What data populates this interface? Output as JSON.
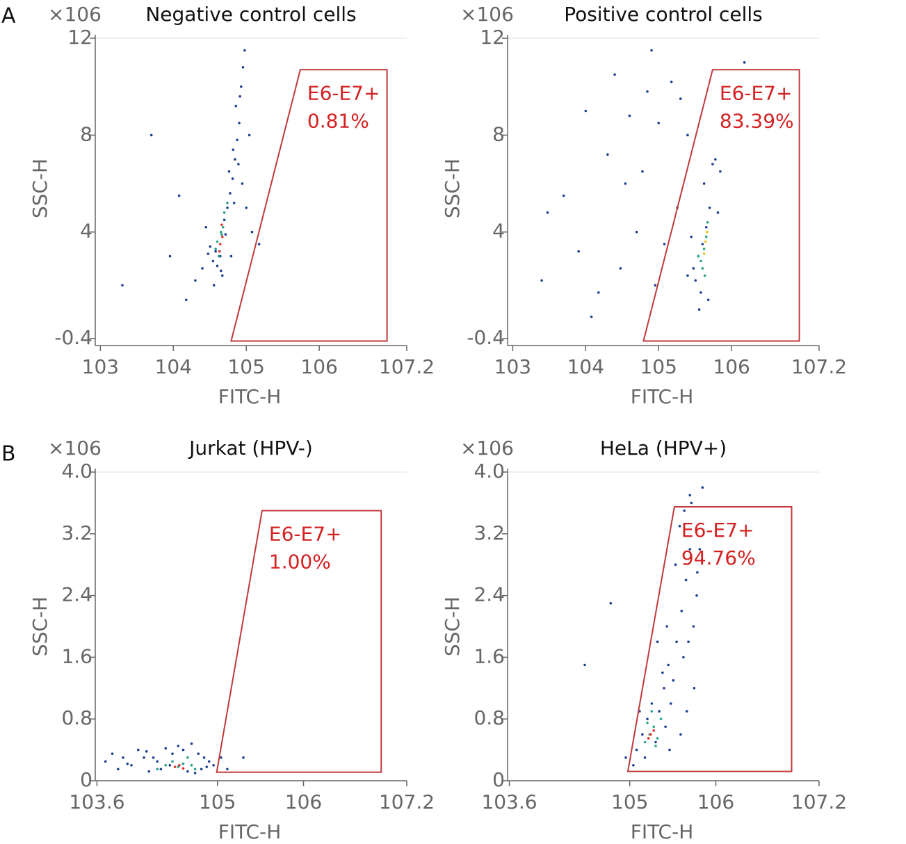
{
  "panels": [
    "A",
    "B"
  ],
  "chart_data": [
    {
      "type": "scatter",
      "title": "Negative control cells",
      "y_unit": "×106",
      "xlabel": "FITC-H",
      "ylabel": "SSC-H",
      "xscale": "log",
      "xlim": [
        850,
        15848932
      ],
      "ylim": [
        -0.4,
        12
      ],
      "xticks": [
        {
          "value": 1000,
          "label": "103"
        },
        {
          "value": 10000,
          "label": "104"
        },
        {
          "value": 100000,
          "label": "105"
        },
        {
          "value": 1000000,
          "label": "106"
        },
        {
          "value": 15848932,
          "label": "107.2"
        }
      ],
      "yticks": [
        -0.4,
        4,
        8,
        12
      ],
      "gate": {
        "color": "#c0393b",
        "x": [
          550000,
          8500000,
          8500000,
          62000
        ],
        "y": [
          10.7,
          10.7,
          -0.5,
          -0.5
        ]
      },
      "annotation": [
        "E6-E7+",
        "0.81%"
      ],
      "points": [
        {
          "color": "#1c3f8f",
          "x": [
            30000,
            40000,
            45000,
            35000,
            50000,
            38000,
            55000,
            60000,
            25000,
            32000,
            44000,
            52000,
            65000,
            70000,
            75000,
            80000,
            72000,
            85000,
            90000,
            95000,
            78000,
            20000,
            28000,
            100000,
            120000,
            15000,
            9000,
            150000,
            110000,
            62000,
            36000,
            47000,
            68000,
            88000,
            5000,
            2000,
            12000,
            82000,
            66000,
            58000
          ],
          "y": [
            3.1,
            2.6,
            2.4,
            2.8,
            4.5,
            3.2,
            5.0,
            5.6,
            2.5,
            3.4,
            3.0,
            3.9,
            6.2,
            7.0,
            7.8,
            8.5,
            9.2,
            10.0,
            10.8,
            11.5,
            6.8,
            2.0,
            4.2,
            5.0,
            4.0,
            1.2,
            3.0,
            3.5,
            8.0,
            3.0,
            1.8,
            2.2,
            5.2,
            6.0,
            8.0,
            1.8,
            5.5,
            9.6,
            7.4,
            6.5
          ]
        },
        {
          "color": "#2aa28a",
          "x": [
            40000,
            45000,
            48000,
            42000,
            50000,
            55000,
            38000,
            46000
          ],
          "y": [
            3.6,
            4.0,
            4.2,
            3.0,
            4.8,
            5.2,
            3.3,
            3.9
          ]
        },
        {
          "color": "#e0302a",
          "x": [
            44000,
            47000,
            43000,
            46000
          ],
          "y": [
            3.5,
            3.8,
            3.2,
            4.3
          ]
        }
      ]
    },
    {
      "type": "scatter",
      "title": "Positive control cells",
      "y_unit": "×106",
      "xlabel": "FITC-H",
      "ylabel": "SSC-H",
      "xscale": "log",
      "xlim": [
        850,
        15848932
      ],
      "ylim": [
        -0.4,
        12
      ],
      "xticks": [
        {
          "value": 1000,
          "label": "103"
        },
        {
          "value": 10000,
          "label": "104"
        },
        {
          "value": 100000,
          "label": "105"
        },
        {
          "value": 1000000,
          "label": "106"
        },
        {
          "value": 15848932,
          "label": "107.2"
        }
      ],
      "yticks": [
        -0.4,
        4,
        8,
        12
      ],
      "gate": {
        "color": "#c0393b",
        "x": [
          550000,
          8500000,
          8500000,
          62000
        ],
        "y": [
          10.7,
          10.7,
          -0.5,
          -0.5
        ]
      },
      "annotation": [
        "E6-E7+",
        "83.39%"
      ],
      "points": [
        {
          "color": "#1c3f8f",
          "x": [
            300000,
            350000,
            400000,
            450000,
            320000,
            500000,
            380000,
            420000,
            280000,
            600000,
            700000,
            250000,
            200000,
            150000,
            80000,
            40000,
            20000,
            10000,
            5000,
            3000,
            60000,
            120000,
            30000,
            15000,
            90000,
            8000,
            180000,
            50000,
            25000,
            250000,
            650000,
            550000,
            480000,
            360000,
            2500,
            100000,
            70000,
            35000,
            12000,
            1500000
          ],
          "y": [
            2.5,
            3.0,
            3.5,
            4.2,
            2.0,
            5.0,
            1.5,
            6.0,
            3.8,
            7.0,
            6.5,
            8.0,
            9.5,
            10.2,
            11.5,
            8.8,
            7.2,
            9.0,
            5.5,
            4.8,
            6.5,
            3.5,
            2.5,
            1.5,
            1.8,
            3.2,
            5.0,
            4.0,
            10.5,
            2.2,
            4.8,
            6.8,
            1.2,
            0.8,
            2.0,
            8.5,
            9.8,
            6.0,
            0.5,
            11.0
          ]
        },
        {
          "color": "#2aa28a",
          "x": [
            380000,
            420000,
            450000,
            400000,
            350000,
            470000,
            430000
          ],
          "y": [
            2.8,
            3.3,
            3.8,
            2.5,
            3.0,
            4.4,
            2.2
          ]
        },
        {
          "color": "#f0c020",
          "x": [
            440000,
            460000,
            420000
          ],
          "y": [
            3.6,
            4.0,
            3.1
          ]
        }
      ]
    },
    {
      "type": "scatter",
      "title": "Jurkat (HPV-)",
      "y_unit": "×106",
      "xlabel": "FITC-H",
      "ylabel": "SSC-H",
      "xscale": "log",
      "xlim": [
        3800,
        15848932
      ],
      "ylim": [
        0,
        4
      ],
      "xticks": [
        {
          "value": 3981,
          "label": "103.6"
        },
        {
          "value": 100000,
          "label": "105"
        },
        {
          "value": 1000000,
          "label": "106"
        },
        {
          "value": 15848932,
          "label": "107.2"
        }
      ],
      "yticks": [
        0,
        0.8,
        1.6,
        2.4,
        3.2,
        {
          "value": 4,
          "label": "4.0"
        }
      ],
      "gate": {
        "color": "#c0393b",
        "x": [
          330000,
          8000000,
          8000000,
          98000
        ],
        "y": [
          3.5,
          3.5,
          0.11,
          0.11
        ]
      },
      "annotation": [
        "E6-E7+",
        "1.00%"
      ],
      "points": [
        {
          "color": "#1c3f8f",
          "x": [
            5000,
            6000,
            8000,
            10000,
            12000,
            15000,
            18000,
            20000,
            25000,
            30000,
            35000,
            40000,
            50000,
            60000,
            70000,
            80000,
            90000,
            110000,
            130000,
            7000,
            9000,
            14000,
            22000,
            28000,
            45000,
            55000,
            65000,
            75000,
            16000,
            200000
          ],
          "y": [
            0.25,
            0.35,
            0.3,
            0.2,
            0.4,
            0.38,
            0.3,
            0.25,
            0.42,
            0.35,
            0.45,
            0.4,
            0.48,
            0.35,
            0.3,
            0.25,
            0.2,
            0.3,
            0.15,
            0.15,
            0.22,
            0.3,
            0.15,
            0.2,
            0.12,
            0.1,
            0.15,
            0.18,
            0.12,
            0.3
          ]
        },
        {
          "color": "#2aa28a",
          "x": [
            20000,
            25000,
            30000,
            35000,
            40000,
            45000,
            50000,
            55000
          ],
          "y": [
            0.15,
            0.2,
            0.25,
            0.18,
            0.22,
            0.3,
            0.2,
            0.15
          ]
        },
        {
          "color": "#e0302a",
          "x": [
            32000,
            36000,
            40000
          ],
          "y": [
            0.18,
            0.2,
            0.16
          ]
        }
      ]
    },
    {
      "type": "scatter",
      "title": "HeLa (HPV+)",
      "y_unit": "×106",
      "xlabel": "FITC-H",
      "ylabel": "SSC-H",
      "xscale": "log",
      "xlim": [
        3800,
        15848932
      ],
      "ylim": [
        0,
        4
      ],
      "xticks": [
        {
          "value": 3981,
          "label": "103.6"
        },
        {
          "value": 100000,
          "label": "105"
        },
        {
          "value": 1000000,
          "label": "106"
        },
        {
          "value": 15848932,
          "label": "107.2"
        }
      ],
      "yticks": [
        0,
        0.8,
        1.6,
        2.4,
        3.2,
        {
          "value": 4,
          "label": "4.0"
        }
      ],
      "gate": {
        "color": "#c0393b",
        "x": [
          330000,
          7600000,
          7600000,
          95000
        ],
        "y": [
          3.55,
          3.55,
          0.12,
          0.12
        ]
      },
      "annotation": [
        "E6-E7+",
        "94.76%"
      ],
      "points": [
        {
          "color": "#1c3f8f",
          "x": [
            120000,
            140000,
            160000,
            180000,
            200000,
            220000,
            250000,
            280000,
            300000,
            350000,
            400000,
            450000,
            500000,
            550000,
            600000,
            320000,
            380000,
            420000,
            260000,
            150000,
            130000,
            110000,
            240000,
            270000,
            480000,
            520000,
            650000,
            700000,
            60000,
            90000,
            340000,
            430000,
            560000,
            460000,
            390000,
            500000,
            30000,
            210000,
            290000,
            610000
          ],
          "y": [
            0.4,
            0.6,
            0.8,
            1.0,
            0.5,
            0.9,
            1.2,
            1.5,
            1.0,
            1.8,
            2.2,
            2.6,
            3.0,
            2.0,
            2.4,
            1.3,
            3.3,
            1.6,
            0.7,
            0.3,
            0.9,
            0.2,
            1.4,
            2.0,
            1.8,
            3.6,
            3.0,
            3.8,
            2.3,
            0.3,
            2.8,
            3.5,
            1.2,
            0.9,
            0.6,
            3.7,
            1.5,
            1.8,
            0.4,
            2.7
          ]
        },
        {
          "color": "#2aa28a",
          "x": [
            150000,
            170000,
            190000,
            210000,
            230000,
            160000,
            200000,
            180000
          ],
          "y": [
            0.5,
            0.6,
            0.7,
            0.55,
            0.8,
            0.75,
            0.45,
            0.9
          ]
        },
        {
          "color": "#e0302a",
          "x": [
            175000,
            190000,
            165000
          ],
          "y": [
            0.6,
            0.65,
            0.55
          ]
        }
      ]
    }
  ]
}
